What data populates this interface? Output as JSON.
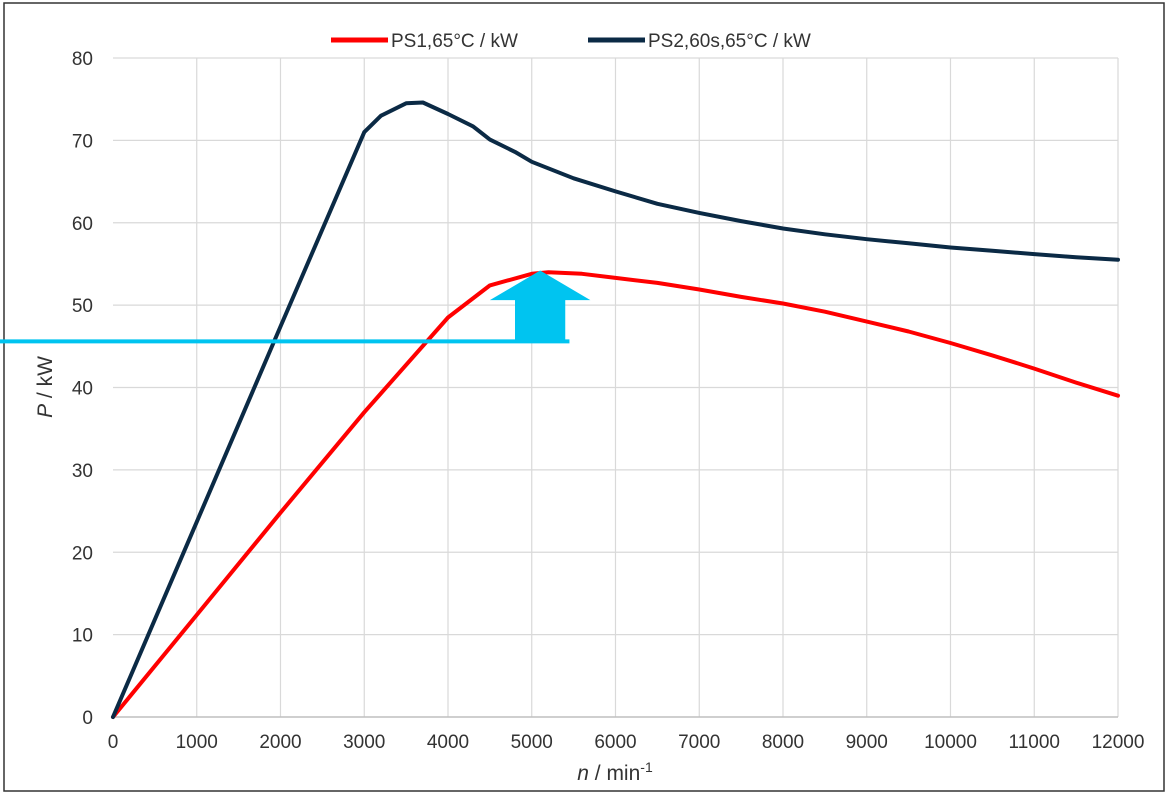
{
  "colors": {
    "ps1": "#ff0000",
    "ps2": "#0b2a45",
    "annotation": "#00c4f0",
    "grid": "#d9d9d9",
    "frame": "#333333"
  },
  "chart_data": {
    "type": "line",
    "xlabel": {
      "var": "n",
      "unit": " / min",
      "sup": "-1"
    },
    "ylabel": {
      "var": "P",
      "unit": " / kW"
    },
    "xlim": [
      0,
      12000
    ],
    "ylim": [
      0,
      80
    ],
    "x_ticks": [
      "0",
      "1000",
      "2000",
      "3000",
      "4000",
      "5000",
      "6000",
      "7000",
      "8000",
      "9000",
      "10000",
      "11000",
      "12000"
    ],
    "y_ticks": [
      "0",
      "10",
      "20",
      "30",
      "40",
      "50",
      "60",
      "70",
      "80"
    ],
    "grid": true,
    "legend_position": "top",
    "series": [
      {
        "name": "PS1,65°C / kW",
        "color_key": "ps1",
        "x": [
          0,
          1000,
          2000,
          3000,
          4000,
          4500,
          5000,
          5200,
          5600,
          6000,
          6500,
          7000,
          7500,
          8000,
          8500,
          9000,
          9500,
          10000,
          10500,
          11000,
          11500,
          12000
        ],
        "y": [
          0,
          12.4,
          24.8,
          37.0,
          48.5,
          52.4,
          53.8,
          54.0,
          53.8,
          53.3,
          52.7,
          51.9,
          51.0,
          50.2,
          49.2,
          48.0,
          46.8,
          45.4,
          43.9,
          42.3,
          40.6,
          39.0
        ]
      },
      {
        "name": "PS2,60s,65°C / kW",
        "color_key": "ps2",
        "x": [
          0,
          1000,
          2000,
          3000,
          3200,
          3500,
          3700,
          4000,
          4300,
          4500,
          4800,
          5000,
          5500,
          6000,
          6500,
          7000,
          7500,
          8000,
          8500,
          9000,
          9500,
          10000,
          10500,
          11000,
          11500,
          12000
        ],
        "y": [
          0,
          23.7,
          47.4,
          71.0,
          73.0,
          74.5,
          74.6,
          73.2,
          71.7,
          70.1,
          68.6,
          67.4,
          65.4,
          63.8,
          62.3,
          61.2,
          60.2,
          59.3,
          58.6,
          58.0,
          57.5,
          57.0,
          56.6,
          56.2,
          55.8,
          55.5
        ]
      }
    ],
    "annotations": {
      "horizontal_line": {
        "y": 45.6,
        "x_end": 5450,
        "color_key": "annotation"
      },
      "arrow": {
        "x": 5100,
        "y_base": 45.6,
        "y_tip": 54.2,
        "shaft_half_width": 300,
        "head_half_width": 600,
        "head_height": 3.6,
        "color_key": "annotation"
      }
    }
  }
}
